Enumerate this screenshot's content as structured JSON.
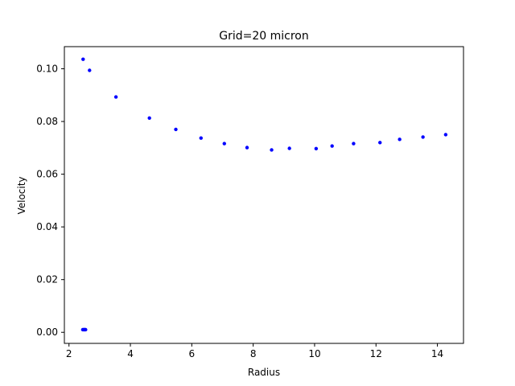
{
  "chart_data": {
    "type": "scatter",
    "title": "Grid=20 micron",
    "xlabel": "Radius",
    "ylabel": "Velocity",
    "xlim": [
      1.85,
      14.85
    ],
    "ylim": [
      -0.0042,
      0.1084
    ],
    "x_ticks": [
      2,
      4,
      6,
      8,
      10,
      12,
      14
    ],
    "x_tick_labels": [
      "2",
      "4",
      "6",
      "8",
      "10",
      "12",
      "14"
    ],
    "y_ticks": [
      0.0,
      0.02,
      0.04,
      0.06,
      0.08,
      0.1
    ],
    "y_tick_labels": [
      "0.00",
      "0.02",
      "0.04",
      "0.06",
      "0.08",
      "0.10"
    ],
    "grid": false,
    "series": [
      {
        "color": "#0000ff",
        "x": [
          2.45,
          2.48,
          2.5,
          2.52,
          2.54,
          2.46,
          2.67,
          3.53,
          4.62,
          5.48,
          6.3,
          7.06,
          7.8,
          8.6,
          9.18,
          10.05,
          10.57,
          11.27,
          12.13,
          12.77,
          13.53,
          14.27
        ],
        "y": [
          0.001,
          0.001,
          0.001,
          0.001,
          0.001,
          0.1036,
          0.0994,
          0.0893,
          0.0813,
          0.077,
          0.0737,
          0.0716,
          0.0701,
          0.0692,
          0.0698,
          0.0697,
          0.0707,
          0.0716,
          0.072,
          0.0732,
          0.0741,
          0.075
        ]
      }
    ]
  }
}
